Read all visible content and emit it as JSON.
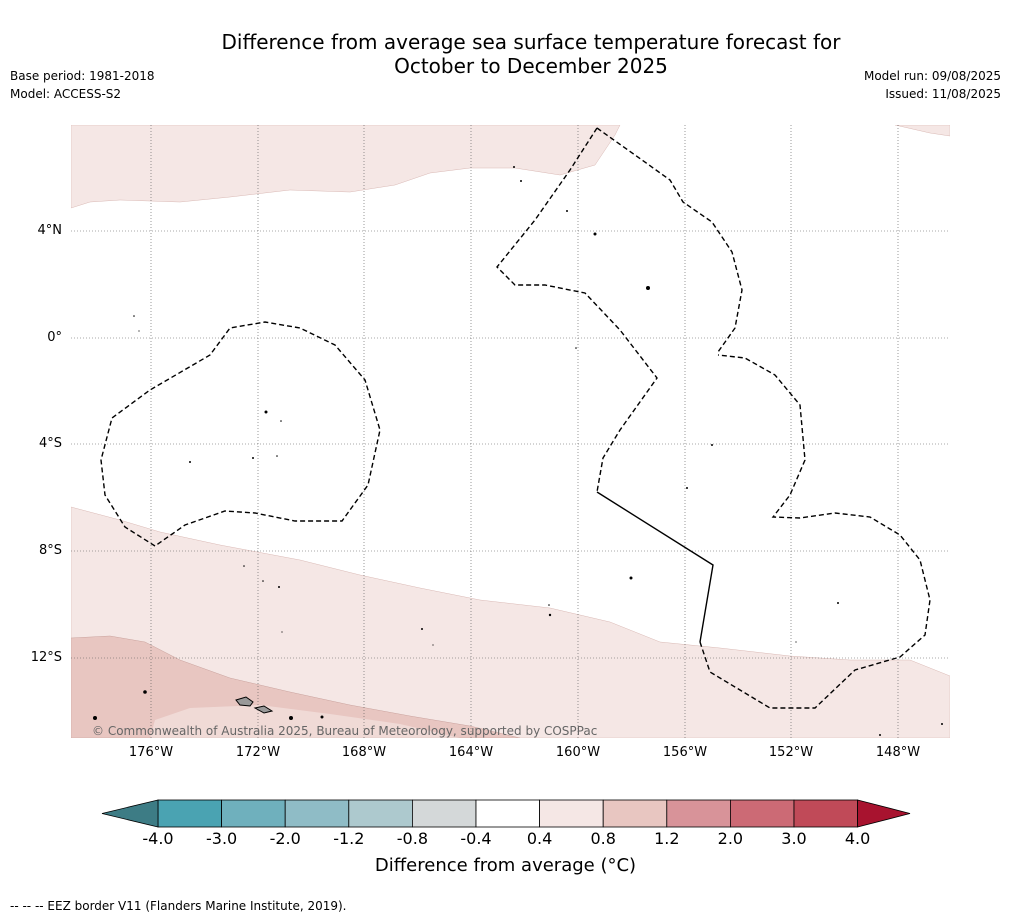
{
  "title": {
    "line1": "Difference from average sea surface temperature forecast for",
    "line2": "October to December 2025"
  },
  "meta_left": {
    "base_period": "Base period: 1981-2018",
    "model": "Model: ACCESS-S2"
  },
  "meta_right": {
    "model_run": "Model run: 09/08/2025",
    "issued": "Issued: 11/08/2025"
  },
  "map": {
    "lat_labels": [
      "4°N",
      "0°",
      "4°S",
      "8°S",
      "12°S"
    ],
    "lon_labels": [
      "176°W",
      "172°W",
      "168°W",
      "164°W",
      "160°W",
      "156°W",
      "152°W",
      "148°W"
    ],
    "copyright": "© Commonwealth of Australia 2025, Bureau of Meteorology, supported by COSPPac"
  },
  "colorbar": {
    "ticks": [
      "-4.0",
      "-3.0",
      "-2.0",
      "-1.2",
      "-0.8",
      "-0.4",
      "0.4",
      "0.8",
      "1.2",
      "2.0",
      "3.0",
      "4.0"
    ],
    "colors": [
      "#4aa3b2",
      "#6fb0bd",
      "#8fbcc6",
      "#adc9ce",
      "#d4d8d9",
      "#ffffff",
      "#f5e7e5",
      "#e8c6c1",
      "#d89399",
      "#cc6a75",
      "#c04a58"
    ],
    "low_color": "#3d7c85",
    "high_color": "#a8132f",
    "label": "Difference from average (°C)"
  },
  "footer": "--  --  -- EEZ border V11 (Flanders Marine Institute, 2019)."
}
